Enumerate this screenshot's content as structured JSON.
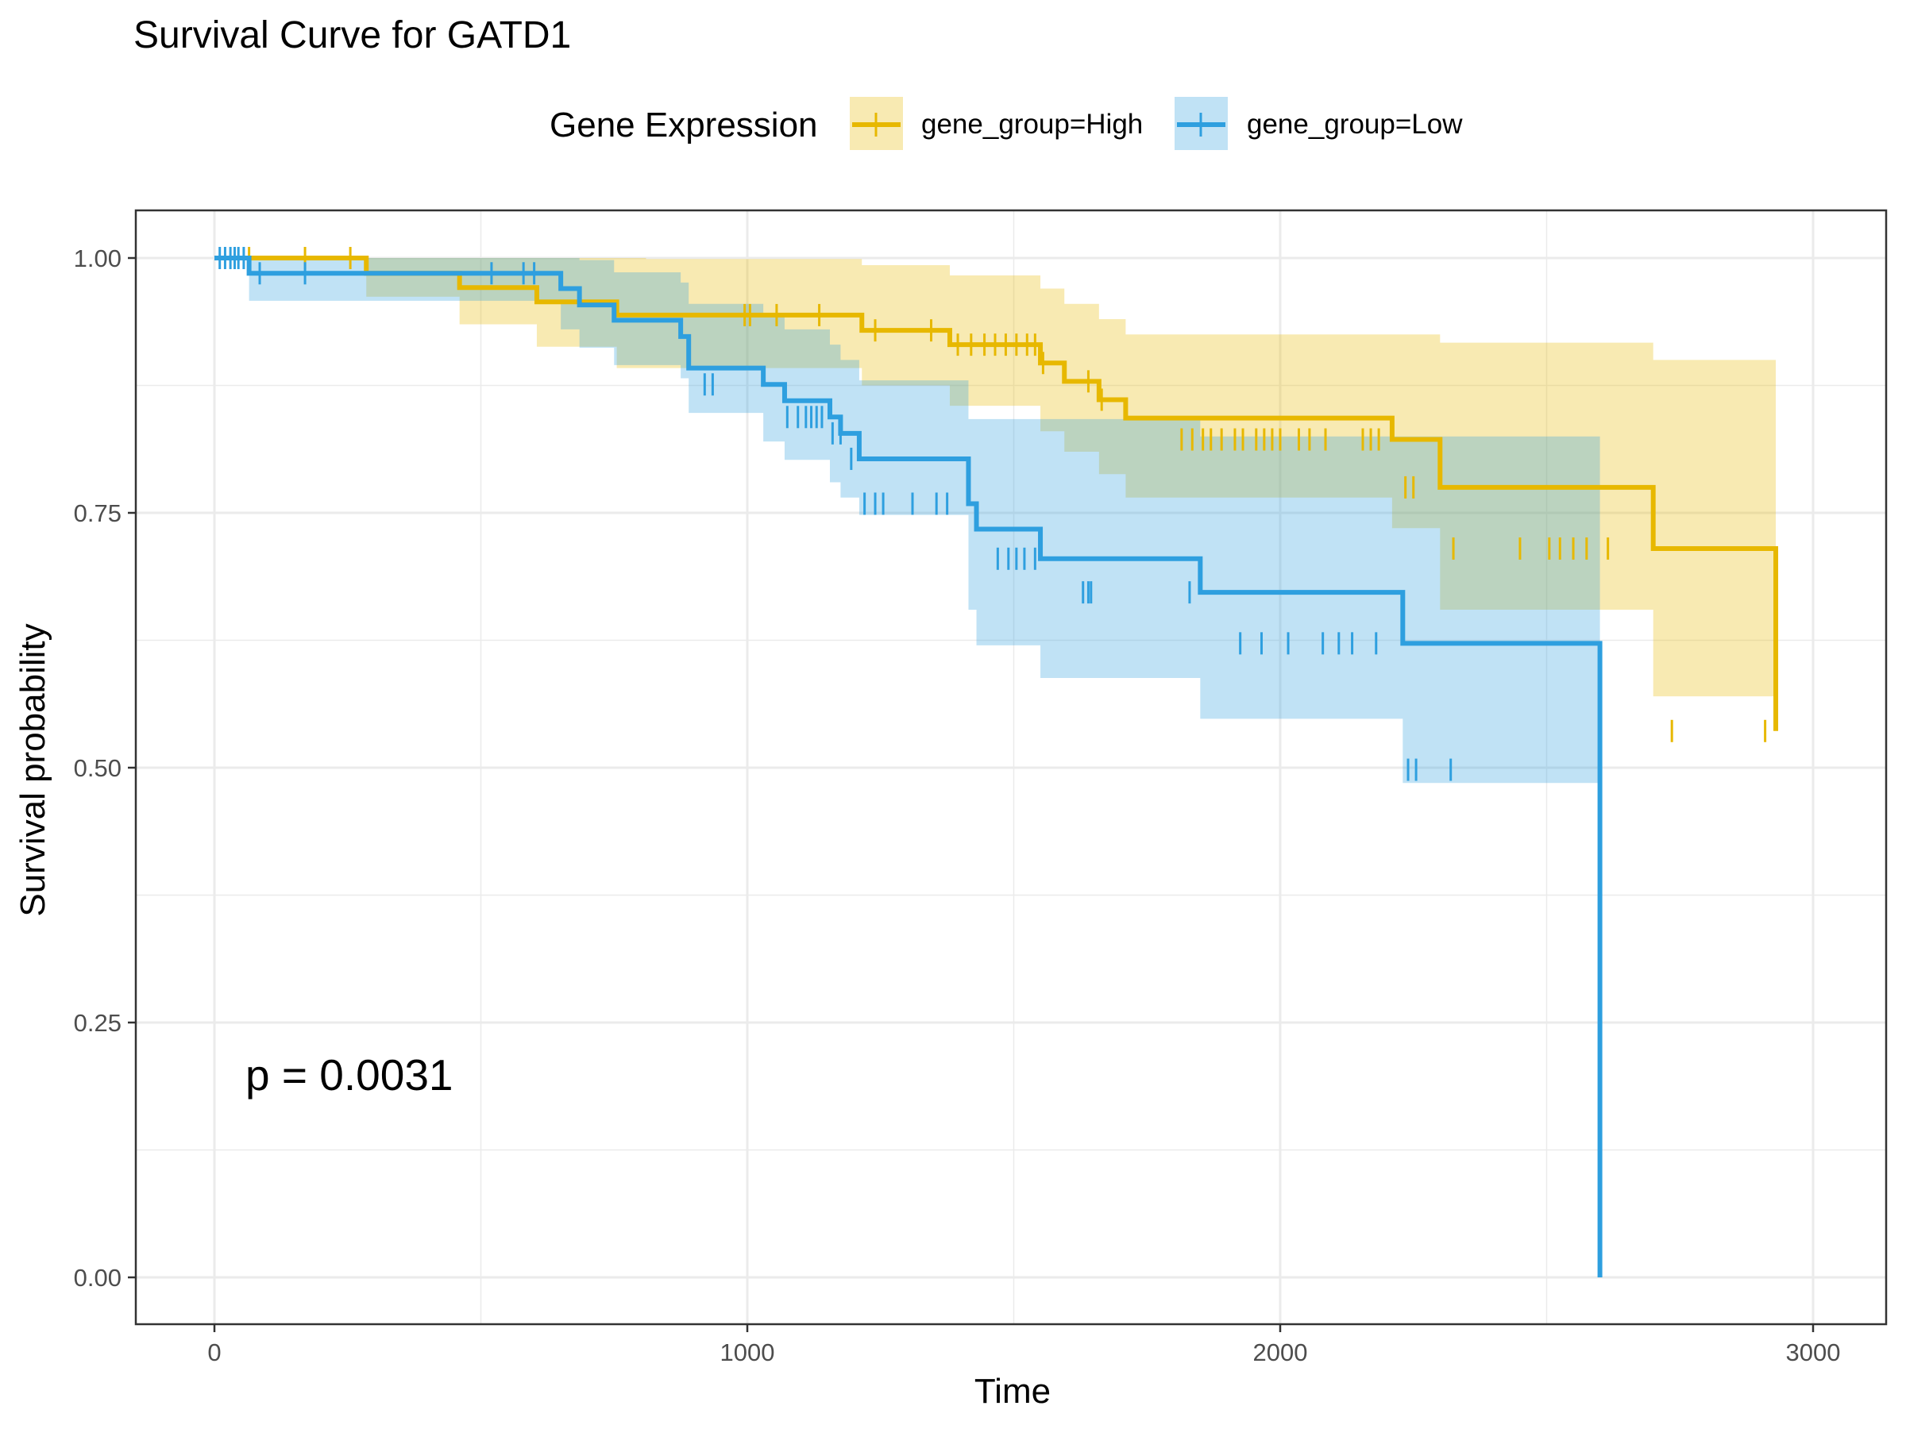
{
  "chart_data": {
    "type": "line",
    "title": "Survival Curve for GATD1",
    "xlabel": "Time",
    "ylabel": "Survival probability",
    "xlim": [
      -150,
      3150
    ],
    "ylim": [
      -0.05,
      1.05
    ],
    "x_ticks": [
      0,
      1000,
      2000,
      3000
    ],
    "x_tick_labels": [
      "0",
      "1000",
      "2000",
      "3000"
    ],
    "y_ticks": [
      0,
      0.25,
      0.5,
      0.75,
      1.0
    ],
    "y_tick_labels": [
      "0.00",
      "0.25",
      "0.50",
      "0.75",
      "1.00"
    ],
    "grid": true,
    "legend": {
      "title": "Gene Expression",
      "position": "top",
      "entries": [
        "gene_group=High",
        "gene_group=Low"
      ]
    },
    "annotation": "p = 0.0031",
    "colors": {
      "High": "#E7B800",
      "Low": "#2E9FDF"
    },
    "series": [
      {
        "name": "gene_group=High",
        "color": "#E7B800",
        "step_times": [
          0,
          285,
          460,
          605,
          755,
          810,
          1215,
          1380,
          1550,
          1595,
          1660,
          1710,
          2210,
          2300,
          2700,
          2930
        ],
        "survival": [
          1.0,
          0.985,
          0.971,
          0.957,
          0.944,
          0.944,
          0.929,
          0.915,
          0.897,
          0.879,
          0.861,
          0.843,
          0.822,
          0.775,
          0.715,
          0.536
        ],
        "ci_lower": [
          1.0,
          0.962,
          0.935,
          0.913,
          0.892,
          0.892,
          0.875,
          0.855,
          0.83,
          0.81,
          0.788,
          0.765,
          0.735,
          0.655,
          0.57,
          0.29
        ],
        "ci_upper": [
          1.0,
          1.0,
          1.0,
          1.0,
          1.0,
          0.999,
          0.993,
          0.983,
          0.97,
          0.955,
          0.94,
          0.925,
          0.925,
          0.917,
          0.9,
          0.987
        ],
        "censor_times": [
          65,
          170,
          255,
          995,
          1005,
          1055,
          1135,
          1240,
          1345,
          1395,
          1420,
          1445,
          1465,
          1485,
          1505,
          1525,
          1540,
          1555,
          1640,
          1665,
          1815,
          1835,
          1855,
          1870,
          1890,
          1915,
          1930,
          1955,
          1970,
          1985,
          2000,
          2035,
          2055,
          2085,
          2155,
          2170,
          2185,
          2235,
          2250,
          2325,
          2450,
          2505,
          2525,
          2550,
          2575,
          2615,
          2735,
          2910
        ],
        "censor_surv": [
          1.0,
          1.0,
          1.0,
          0.944,
          0.944,
          0.944,
          0.944,
          0.929,
          0.929,
          0.915,
          0.915,
          0.915,
          0.915,
          0.915,
          0.915,
          0.915,
          0.915,
          0.897,
          0.879,
          0.861,
          0.822,
          0.822,
          0.822,
          0.822,
          0.822,
          0.822,
          0.822,
          0.822,
          0.822,
          0.822,
          0.822,
          0.822,
          0.822,
          0.822,
          0.822,
          0.822,
          0.822,
          0.775,
          0.775,
          0.715,
          0.715,
          0.715,
          0.715,
          0.715,
          0.715,
          0.715,
          0.536,
          0.536
        ]
      },
      {
        "name": "gene_group=Low",
        "color": "#2E9FDF",
        "step_times": [
          0,
          65,
          650,
          685,
          750,
          875,
          890,
          1030,
          1070,
          1155,
          1175,
          1210,
          1415,
          1430,
          1550,
          1850,
          2230,
          2600
        ],
        "survival": [
          1.0,
          0.985,
          0.97,
          0.954,
          0.939,
          0.923,
          0.892,
          0.876,
          0.86,
          0.844,
          0.828,
          0.803,
          0.759,
          0.734,
          0.705,
          0.672,
          0.622,
          0.0
        ],
        "ci_lower": [
          1.0,
          0.958,
          0.93,
          0.912,
          0.895,
          0.882,
          0.848,
          0.82,
          0.802,
          0.78,
          0.765,
          0.748,
          0.655,
          0.62,
          0.588,
          0.548,
          0.485,
          0.3
        ],
        "ci_upper": [
          1.0,
          1.0,
          1.0,
          0.998,
          0.986,
          0.976,
          0.955,
          0.942,
          0.93,
          0.915,
          0.9,
          0.88,
          0.842,
          0.842,
          0.842,
          0.825,
          0.825,
          0.825
        ],
        "censor_times": [
          10,
          20,
          30,
          38,
          45,
          55,
          85,
          170,
          520,
          580,
          600,
          920,
          935,
          1075,
          1095,
          1110,
          1120,
          1130,
          1140,
          1160,
          1175,
          1195,
          1220,
          1240,
          1255,
          1310,
          1355,
          1375,
          1470,
          1490,
          1505,
          1520,
          1540,
          1630,
          1640,
          1645,
          1830,
          1925,
          1965,
          2015,
          2080,
          2110,
          2135,
          2180,
          2240,
          2255,
          2320
        ],
        "censor_surv": [
          1.0,
          1.0,
          1.0,
          1.0,
          1.0,
          1.0,
          0.985,
          0.985,
          0.985,
          0.985,
          0.985,
          0.876,
          0.876,
          0.844,
          0.844,
          0.844,
          0.844,
          0.844,
          0.844,
          0.828,
          0.828,
          0.803,
          0.759,
          0.759,
          0.759,
          0.759,
          0.759,
          0.759,
          0.705,
          0.705,
          0.705,
          0.705,
          0.705,
          0.672,
          0.672,
          0.672,
          0.672,
          0.622,
          0.622,
          0.622,
          0.622,
          0.622,
          0.622,
          0.622,
          0.498,
          0.498,
          0.498
        ]
      }
    ]
  }
}
